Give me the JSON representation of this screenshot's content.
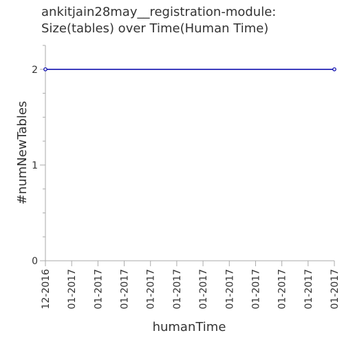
{
  "chart_data": {
    "type": "line",
    "title_lines": [
      "ankitjain28may__registration-module:",
      "Size(tables) over Time(Human Time)"
    ],
    "xlabel": "humanTime",
    "ylabel": "#numNewTables",
    "x_tick_labels": [
      "12-2016",
      "01-2017",
      "01-2017",
      "01-2017",
      "01-2017",
      "01-2017",
      "01-2017",
      "01-2017",
      "01-2017",
      "01-2017",
      "01-2017",
      "01-2017"
    ],
    "y_ticks": [
      0,
      1,
      2
    ],
    "ylim": [
      0,
      2.25
    ],
    "series": [
      {
        "x_index": [
          0,
          11
        ],
        "values": [
          2,
          2
        ],
        "color": "#0000aa"
      }
    ],
    "grid": false,
    "colors": {
      "axis": "#aaaaaa",
      "text": "#333333",
      "line": "#0000aa"
    }
  }
}
